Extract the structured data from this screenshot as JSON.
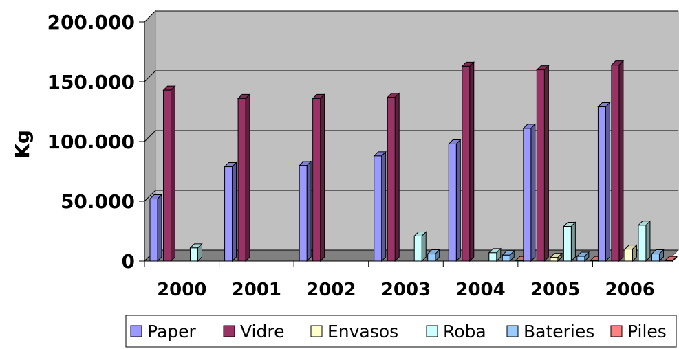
{
  "chart_data": {
    "type": "bar",
    "ylabel": "Kg",
    "xlabel": "",
    "ylim": [
      0,
      200000
    ],
    "ytick_values": [
      0,
      50000,
      100000,
      150000,
      200000
    ],
    "ytick_labels": [
      "0",
      "50.000",
      "100.000",
      "150.000",
      "200.000"
    ],
    "categories": [
      "2000",
      "2001",
      "2002",
      "2003",
      "2004",
      "2005",
      "2006"
    ],
    "series": [
      {
        "name": "Paper",
        "color": "#9999ff",
        "values": [
          52000,
          79000,
          80000,
          88000,
          98000,
          111000,
          129000
        ]
      },
      {
        "name": "Vidre",
        "color": "#993366",
        "values": [
          143000,
          136000,
          136000,
          137000,
          163000,
          160000,
          164000
        ]
      },
      {
        "name": "Envasos",
        "color": "#ffffcc",
        "values": [
          0,
          0,
          0,
          0,
          0,
          3000,
          10000
        ]
      },
      {
        "name": "Roba",
        "color": "#ccffff",
        "values": [
          11000,
          0,
          0,
          21000,
          7000,
          29000,
          30000
        ]
      },
      {
        "name": "Bateries",
        "color": "#99ccff",
        "values": [
          0,
          0,
          0,
          6000,
          5000,
          4000,
          6000
        ]
      },
      {
        "name": "Piles",
        "color": "#ff8080",
        "values": [
          0,
          0,
          0,
          0,
          500,
          500,
          500
        ]
      }
    ],
    "grid": true,
    "legend_position": "bottom",
    "style": "3d-clustered-column",
    "wall_color": "#c0c0c0"
  }
}
